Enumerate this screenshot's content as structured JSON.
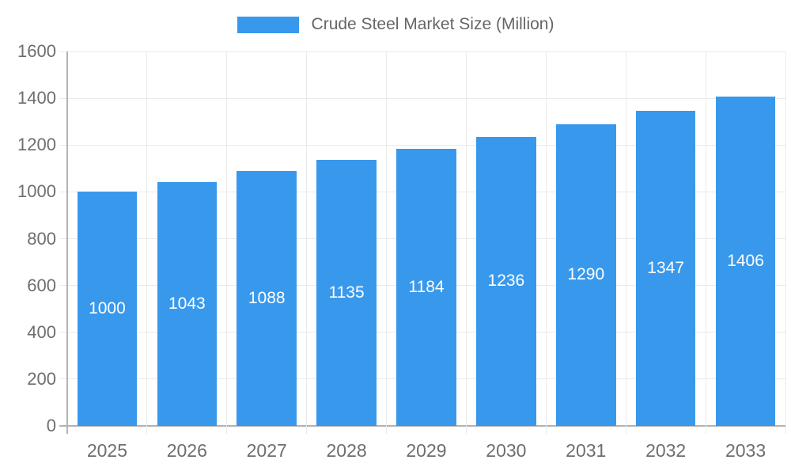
{
  "legend": {
    "label": "Crude Steel Market Size (Million)"
  },
  "chart_data": {
    "type": "bar",
    "title": "",
    "categories": [
      "2025",
      "2026",
      "2027",
      "2028",
      "2029",
      "2030",
      "2031",
      "2032",
      "2033"
    ],
    "series": [
      {
        "name": "Crude Steel Market Size (Million)",
        "values": [
          1000,
          1043,
          1088,
          1135,
          1184,
          1236,
          1290,
          1347,
          1406
        ]
      }
    ],
    "xlabel": "",
    "ylabel": "",
    "ylim": [
      0,
      1600
    ],
    "yticks": [
      0,
      200,
      400,
      600,
      800,
      1000,
      1200,
      1400,
      1600
    ],
    "grid": true,
    "legend_position": "top",
    "value_labels": "inside-center",
    "colors": {
      "bar": "#3899EC",
      "grid": "#EAEAEA",
      "axis": "#B3B3B3",
      "tick_label": "#6E6E6E",
      "legend_text": "#666666",
      "value_label": "#FFFFFF"
    }
  }
}
